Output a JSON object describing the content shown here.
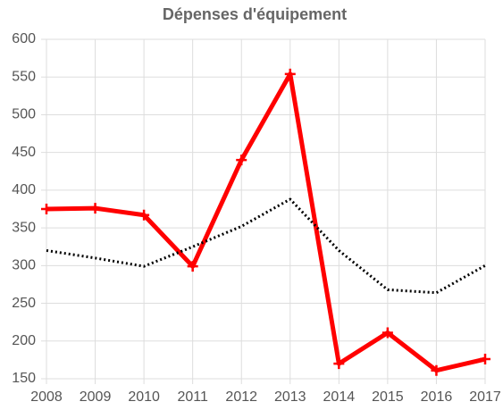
{
  "chart_data": {
    "type": "line",
    "title": "Dépenses d'équipement",
    "x": [
      2008,
      2009,
      2010,
      2011,
      2012,
      2013,
      2014,
      2015,
      2016,
      2017
    ],
    "xlim": [
      2008,
      2017
    ],
    "xticks": [
      2008,
      2009,
      2010,
      2011,
      2012,
      2013,
      2014,
      2015,
      2016,
      2017
    ],
    "ylim": [
      150,
      600
    ],
    "yticks": [
      150,
      200,
      250,
      300,
      350,
      400,
      450,
      500,
      550,
      600
    ],
    "grid": true,
    "series": [
      {
        "color": "#ff0000",
        "line_style": "solid",
        "marker": "plus",
        "values": [
          375,
          376,
          367,
          299,
          440,
          554,
          170,
          211,
          161,
          176
        ]
      },
      {
        "color": "#000000",
        "line_style": "dotted",
        "marker": "none",
        "values": [
          320,
          310,
          299,
          325,
          352,
          388,
          320,
          268,
          264,
          300
        ]
      }
    ]
  }
}
